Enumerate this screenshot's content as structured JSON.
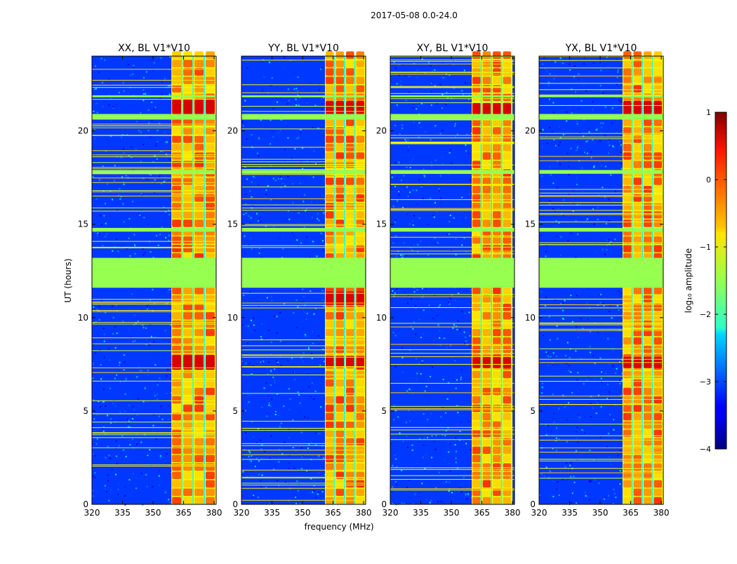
{
  "suptitle": "2017-05-08 0.0-24.0",
  "chart_data": {
    "type": "heatmap",
    "title": "2017-05-08 0.0-24.0",
    "xlabel": "frequency (MHz)",
    "ylabel": "UT (hours)",
    "xlim": [
      320,
      381
    ],
    "ylim": [
      0,
      24
    ],
    "xticks": [
      320,
      335,
      350,
      365,
      380
    ],
    "yticks": [
      0,
      5,
      10,
      15,
      20
    ],
    "panels": [
      {
        "title": "XX, BL V1*V10",
        "bright_mhz": [
          359,
          381
        ],
        "strong_hours": [
          [
            7.2,
            8.0
          ],
          [
            20.9,
            21.7
          ]
        ]
      },
      {
        "title": "YY, BL V1*V10",
        "bright_mhz": [
          361,
          381
        ],
        "strong_hours": [
          [
            7.3,
            8.0
          ],
          [
            10.6,
            11.4
          ],
          [
            20.9,
            21.6
          ]
        ]
      },
      {
        "title": "XY, BL V1*V10",
        "bright_mhz": [
          360,
          380
        ],
        "strong_hours": [
          [
            7.3,
            7.9
          ],
          [
            20.9,
            21.5
          ]
        ]
      },
      {
        "title": "YX, BL V1*V10",
        "bright_mhz": [
          361,
          381
        ],
        "strong_hours": [
          [
            7.3,
            7.9
          ],
          [
            20.9,
            21.6
          ]
        ]
      }
    ],
    "flagged_hours": [
      [
        11.6,
        13.2
      ],
      [
        20.6,
        20.9
      ],
      [
        17.7,
        17.9
      ],
      [
        14.6,
        14.8
      ],
      [
        21.8,
        21.9
      ]
    ],
    "colorbar": {
      "label": "log₁₀ amplitude",
      "range": [
        -4,
        1
      ],
      "ticks": [
        1,
        0,
        -1,
        -2,
        -3,
        -4
      ],
      "tick_labels": [
        "1",
        "0",
        "−1",
        "−2",
        "−3",
        "−4"
      ],
      "colormap": "jet",
      "flagged_color": "#96ff50"
    }
  }
}
